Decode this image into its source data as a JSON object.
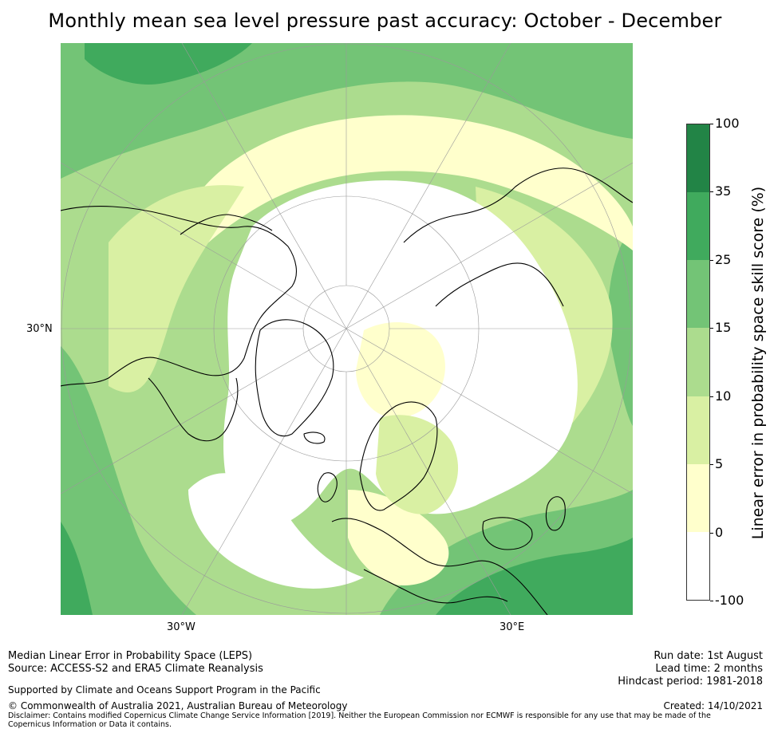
{
  "title": "Monthly mean sea level pressure past accuracy: October - December",
  "map": {
    "projection": "north-polar-stereographic",
    "lon_labels": [
      "30°W",
      "30°E"
    ],
    "lat_labels": [
      "30°N"
    ]
  },
  "colorbar": {
    "label": "Linear error in probability space skill score (%)",
    "ticks": [
      "100",
      "35",
      "25",
      "15",
      "10",
      "5",
      "0",
      "-100"
    ],
    "segments": [
      {
        "range": "35 to 100",
        "color": "#228446"
      },
      {
        "range": "25 to 35",
        "color": "#40aa5d"
      },
      {
        "range": "15 to 25",
        "color": "#73c476"
      },
      {
        "range": "10 to 15",
        "color": "#acdc8e"
      },
      {
        "range": "5 to 10",
        "color": "#d9f0a3"
      },
      {
        "range": "0 to 5",
        "color": "#ffffcc"
      },
      {
        "range": "-100 to 0",
        "color": "#ffffff"
      }
    ]
  },
  "footer": {
    "left_line1": "Median Linear Error in Probability Space (LEPS)",
    "left_line2": "Source: ACCESS-S2 and ERA5 Climate Reanalysis",
    "supported": "Supported by Climate and Oceans Support Program in the Pacific",
    "copyright": "© Commonwealth of Australia 2021, Australian Bureau of Meteorology",
    "disclaimer": "Disclaimer: Contains modified Copernicus Climate Change Service Information [2019]. Neither the European Commission nor ECMWF is responsible for any use that may be made of the Copernicus Information or Data it contains.",
    "run_date": "Run date: 1st August",
    "lead_time": "Lead time: 2 months",
    "hindcast": "Hindcast period: 1981-2018",
    "created": "Created: 14/10/2021"
  }
}
